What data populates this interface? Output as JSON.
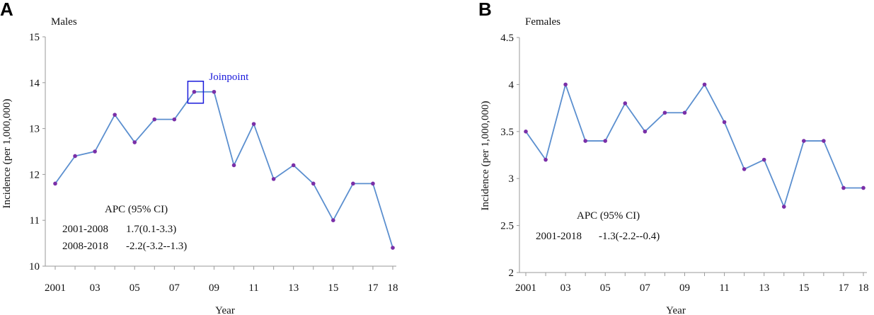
{
  "figure": {
    "chart_data": [
      {
        "type": "line",
        "panel": "A",
        "title": "Males",
        "xlabel": "Year",
        "ylabel": "Incidence (per 1,000,000)",
        "x": [
          2001,
          2002,
          2003,
          2004,
          2005,
          2006,
          2007,
          2008,
          2009,
          2010,
          2011,
          2012,
          2013,
          2014,
          2015,
          2016,
          2017,
          2018
        ],
        "values": [
          11.8,
          12.4,
          12.5,
          13.3,
          12.7,
          13.2,
          13.2,
          13.8,
          13.8,
          12.2,
          13.1,
          11.9,
          12.2,
          11.8,
          11.0,
          11.8,
          11.8,
          10.4
        ],
        "xticks": [
          2001,
          2003,
          2005,
          2007,
          2009,
          2011,
          2013,
          2015,
          2017,
          2018
        ],
        "xtick_labels": [
          "2001",
          "03",
          "05",
          "07",
          "09",
          "11",
          "13",
          "15",
          "17",
          "18"
        ],
        "yticks": [
          10,
          11,
          12,
          13,
          14,
          15
        ],
        "ytick_labels": [
          "10",
          "11",
          "12",
          "13",
          "14",
          "15"
        ],
        "ylim": [
          10,
          15
        ],
        "joinpoint": {
          "label": "Joinpoint",
          "x": 2008
        },
        "apc": {
          "heading": "APC (95% CI)",
          "rows": [
            {
              "period": "2001-2008",
              "value": "1.7(0.1-3.3)"
            },
            {
              "period": "2008-2018",
              "value": "-2.2(-3.2--1.3)"
            }
          ]
        },
        "line_color": "#5b8fcf",
        "marker_color": "#7a2fa8",
        "joinpoint_color": "#1a1adb"
      },
      {
        "type": "line",
        "panel": "B",
        "title": "Females",
        "xlabel": "Year",
        "ylabel": "Incidence (per 1,000,000)",
        "x": [
          2001,
          2002,
          2003,
          2004,
          2005,
          2006,
          2007,
          2008,
          2009,
          2010,
          2011,
          2012,
          2013,
          2014,
          2015,
          2016,
          2017,
          2018
        ],
        "values": [
          3.5,
          3.2,
          4.0,
          3.4,
          3.4,
          3.8,
          3.5,
          3.7,
          3.7,
          4.0,
          3.6,
          3.1,
          3.2,
          2.7,
          3.4,
          3.4,
          2.9,
          2.9
        ],
        "xticks": [
          2001,
          2003,
          2005,
          2007,
          2009,
          2011,
          2013,
          2015,
          2017,
          2018
        ],
        "xtick_labels": [
          "2001",
          "03",
          "05",
          "07",
          "09",
          "11",
          "13",
          "15",
          "17",
          "18"
        ],
        "yticks": [
          2,
          2.5,
          3,
          3.5,
          4,
          4.5
        ],
        "ytick_labels": [
          "2",
          "2.5",
          "3",
          "3.5",
          "4",
          "4.5"
        ],
        "ylim": [
          2,
          4.5
        ],
        "apc": {
          "heading": "APC (95% CI)",
          "rows": [
            {
              "period": "2001-2018",
              "value": "-1.3(-2.2--0.4)"
            }
          ]
        },
        "line_color": "#5b8fcf",
        "marker_color": "#7a2fa8"
      }
    ]
  }
}
